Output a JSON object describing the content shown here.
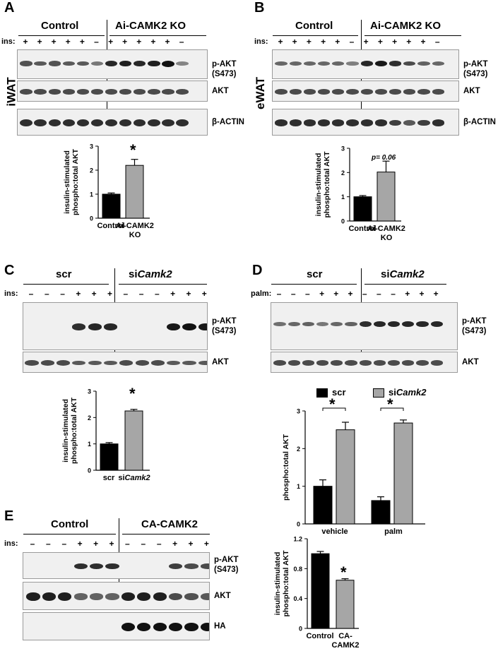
{
  "panels": {
    "A": {
      "letter": "A",
      "tissue": "iWAT",
      "groups": [
        "Control",
        "Ai-CAMK2 KO"
      ],
      "ins_label": "ins:",
      "signs": [
        "+",
        "+",
        "+",
        "+",
        "+",
        "–",
        "+",
        "+",
        "+",
        "+",
        "+",
        "–"
      ],
      "rows": [
        "p-AKT\n(S473)",
        "AKT",
        "β-ACTIN"
      ],
      "ylabel": "insulin-stimulated\nphospho:total AKT",
      "sig": "*"
    },
    "B": {
      "letter": "B",
      "tissue": "eWAT",
      "groups": [
        "Control",
        "Ai-CAMK2 KO"
      ],
      "ins_label": "ins:",
      "signs": [
        "+",
        "+",
        "+",
        "+",
        "+",
        "–",
        "+",
        "+",
        "+",
        "+",
        "+",
        "–"
      ],
      "rows": [
        "p-AKT\n(S473)",
        "AKT",
        "β-ACTIN"
      ],
      "ylabel": "insulin-stimulated\nphospho:total AKT",
      "pval": "p= 0.06"
    },
    "C": {
      "letter": "C",
      "groups": [
        "scr",
        "siCamk2"
      ],
      "ins_label": "ins:",
      "signs": [
        "–",
        "–",
        "–",
        "+",
        "+",
        "+",
        "–",
        "–",
        "–",
        "+",
        "+",
        "+"
      ],
      "rows": [
        "p-AKT\n(S473)",
        "AKT"
      ],
      "ylabel": "insulin-stimulated\nphospho:total AKT",
      "sig": "*"
    },
    "D": {
      "letter": "D",
      "groups": [
        "scr",
        "siCamk2"
      ],
      "ins_label": "palm:",
      "signs": [
        "–",
        "–",
        "–",
        "+",
        "+",
        "+",
        "–",
        "–",
        "–",
        "+",
        "+",
        "+"
      ],
      "rows": [
        "p-AKT\n(S473)",
        "AKT"
      ],
      "ylabel": "phospho:total AKT",
      "legend": [
        "scr",
        "siCamk2"
      ],
      "sig": "*"
    },
    "E": {
      "letter": "E",
      "groups": [
        "Control",
        "CA-CAMK2"
      ],
      "ins_label": "ins:",
      "signs": [
        "–",
        "–",
        "–",
        "+",
        "+",
        "+",
        "–",
        "–",
        "–",
        "+",
        "+",
        "+"
      ],
      "rows": [
        "p-AKT\n(S473)",
        "AKT",
        "HA"
      ],
      "ylabel": "insulin-stimulated\nphospho:total AKT",
      "sig": "*"
    }
  },
  "chart_data": [
    {
      "panel": "A",
      "type": "bar",
      "categories": [
        "Control",
        "Ai-CAMK2\nKO"
      ],
      "values": [
        1.0,
        2.2
      ],
      "errors": [
        0.05,
        0.25
      ],
      "colors": [
        "#000000",
        "#a6a6a6"
      ],
      "ylabel": "insulin-stimulated phospho:total AKT",
      "ylim": [
        0,
        3
      ],
      "yticks": [
        0,
        1,
        2,
        3
      ]
    },
    {
      "panel": "B",
      "type": "bar",
      "categories": [
        "Control",
        "Ai-CAMK2\nKO"
      ],
      "values": [
        1.0,
        2.02
      ],
      "errors": [
        0.05,
        0.45
      ],
      "colors": [
        "#000000",
        "#a6a6a6"
      ],
      "ylabel": "insulin-stimulated phospho:total AKT",
      "ylim": [
        0,
        3
      ],
      "yticks": [
        0,
        1,
        2,
        3
      ],
      "annotation": "p= 0.06"
    },
    {
      "panel": "C",
      "type": "bar",
      "categories": [
        "scr",
        "siCamk2"
      ],
      "values": [
        1.0,
        2.25
      ],
      "errors": [
        0.05,
        0.06
      ],
      "colors": [
        "#000000",
        "#a6a6a6"
      ],
      "ylabel": "insulin-stimulated phospho:total AKT",
      "ylim": [
        0,
        3
      ],
      "yticks": [
        0,
        1,
        2,
        3
      ]
    },
    {
      "panel": "D",
      "type": "bar",
      "categories": [
        "vehicle",
        "palm"
      ],
      "series": [
        {
          "name": "scr",
          "values": [
            1.0,
            0.62
          ],
          "errors": [
            0.17,
            0.1
          ],
          "color": "#000000"
        },
        {
          "name": "siCamk2",
          "values": [
            2.5,
            2.68
          ],
          "errors": [
            0.2,
            0.08
          ],
          "color": "#a6a6a6"
        }
      ],
      "ylabel": "phospho:total AKT",
      "ylim": [
        0,
        3
      ],
      "yticks": [
        0,
        1,
        2,
        3
      ],
      "legend_position": "top"
    },
    {
      "panel": "E",
      "type": "bar",
      "categories": [
        "Control",
        "CA-\nCAMK2"
      ],
      "values": [
        1.0,
        0.645
      ],
      "errors": [
        0.03,
        0.02
      ],
      "colors": [
        "#000000",
        "#a6a6a6"
      ],
      "ylabel": "insulin-stimulated phospho:total AKT",
      "ylim": [
        0,
        1.2
      ],
      "yticks": [
        0,
        0.4,
        0.8,
        1.2
      ]
    }
  ]
}
